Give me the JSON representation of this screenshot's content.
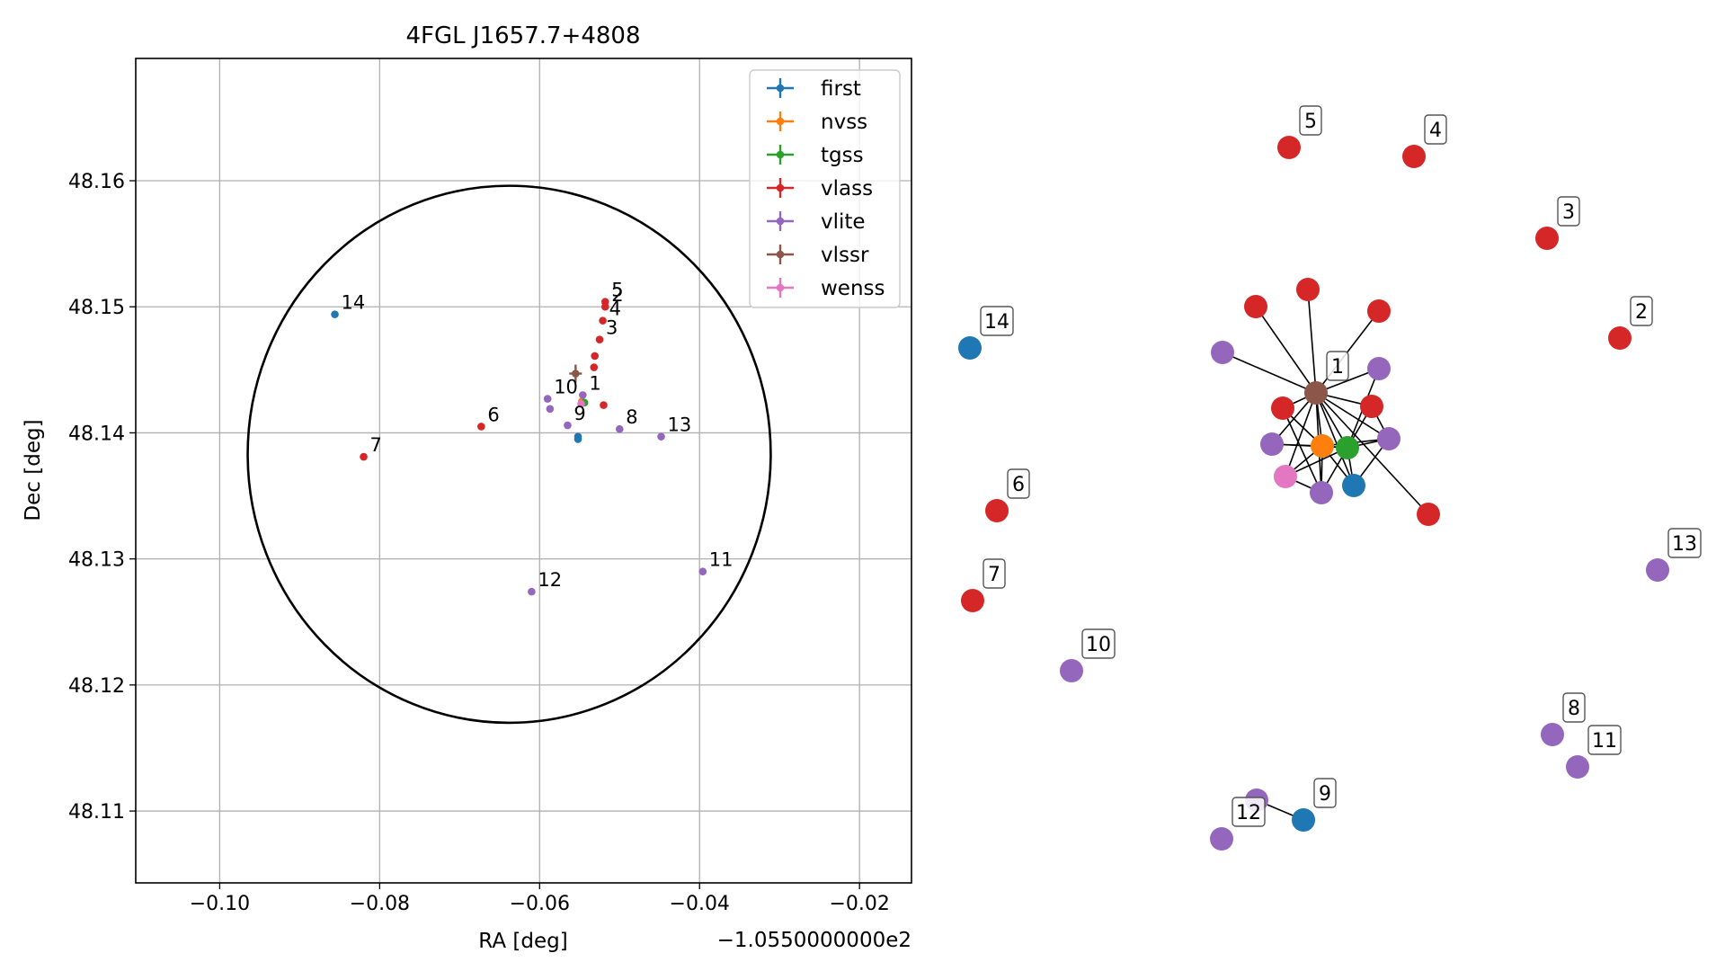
{
  "colors": {
    "first": "#1f77b4",
    "nvss": "#ff7f0e",
    "tgss": "#2ca02c",
    "vlass": "#d62728",
    "vlite": "#9467bd",
    "vlssr": "#8c564b",
    "wenss": "#e377c2"
  },
  "chart_data": [
    {
      "type": "scatter",
      "title": "4FGL J1657.7+4808",
      "xlabel": "RA [deg]",
      "ylabel": "Dec [deg]",
      "x_offset_label": "−1.0550000000e2",
      "xlim": [
        -0.1105,
        -0.0135
      ],
      "ylim": [
        48.1043,
        48.1697
      ],
      "xticks": [
        -0.1,
        -0.08,
        -0.06,
        -0.04,
        -0.02
      ],
      "xtick_labels": [
        "−0.10",
        "−0.08",
        "−0.06",
        "−0.04",
        "−0.02"
      ],
      "yticks": [
        48.11,
        48.12,
        48.13,
        48.14,
        48.15,
        48.16
      ],
      "ytick_labels": [
        "48.11",
        "48.12",
        "48.13",
        "48.14",
        "48.15",
        "48.16"
      ],
      "grid": true,
      "legend_placement": "top-right",
      "legend": [
        "first",
        "nvss",
        "tgss",
        "vlass",
        "vlite",
        "vlssr",
        "wenss"
      ],
      "circle": {
        "center": [
          -0.0638,
          48.1383
        ],
        "radius_ra": 0.0327,
        "radius_dec": 0.0213
      },
      "points": [
        {
          "survey": "first",
          "x": -0.0552,
          "y": 48.1395
        },
        {
          "survey": "first",
          "x": -0.0552,
          "y": 48.1397
        },
        {
          "survey": "first",
          "x": -0.0856,
          "y": 48.1494,
          "label": "14"
        },
        {
          "survey": "nvss",
          "x": -0.0547,
          "y": 48.1425
        },
        {
          "survey": "tgss",
          "x": -0.0544,
          "y": 48.1424
        },
        {
          "survey": "vlass",
          "x": -0.0518,
          "y": 48.1504,
          "label": "5"
        },
        {
          "survey": "vlass",
          "x": -0.0518,
          "y": 48.15,
          "label": "2"
        },
        {
          "survey": "vlass",
          "x": -0.0521,
          "y": 48.1489,
          "label": "4"
        },
        {
          "survey": "vlass",
          "x": -0.0525,
          "y": 48.1474,
          "label": "3"
        },
        {
          "survey": "vlass",
          "x": -0.0531,
          "y": 48.1461
        },
        {
          "survey": "vlass",
          "x": -0.0532,
          "y": 48.1452
        },
        {
          "survey": "vlass",
          "x": -0.052,
          "y": 48.1422
        },
        {
          "survey": "vlass",
          "x": -0.0673,
          "y": 48.1405,
          "label": "6"
        },
        {
          "survey": "vlass",
          "x": -0.082,
          "y": 48.1381,
          "label": "7"
        },
        {
          "survey": "vlite",
          "x": -0.0546,
          "y": 48.143,
          "label": "1"
        },
        {
          "survey": "vlite",
          "x": -0.059,
          "y": 48.1427,
          "label": "10"
        },
        {
          "survey": "vlite",
          "x": -0.0587,
          "y": 48.1419
        },
        {
          "survey": "vlite",
          "x": -0.0565,
          "y": 48.1406,
          "label": "9"
        },
        {
          "survey": "vlite",
          "x": -0.05,
          "y": 48.1403,
          "label": "8"
        },
        {
          "survey": "vlite",
          "x": -0.0448,
          "y": 48.1397,
          "label": "13"
        },
        {
          "survey": "vlite",
          "x": -0.0396,
          "y": 48.129,
          "label": "11"
        },
        {
          "survey": "vlite",
          "x": -0.061,
          "y": 48.1274,
          "label": "12"
        },
        {
          "survey": "vlssr",
          "x": -0.0555,
          "y": 48.1447
        },
        {
          "survey": "wenss",
          "x": -0.0548,
          "y": 48.1423
        }
      ]
    },
    {
      "type": "network",
      "nodes": [
        {
          "id": "n1",
          "survey": "vlssr",
          "label": "1"
        },
        {
          "id": "n2",
          "survey": "vlass",
          "label": "2"
        },
        {
          "id": "n3",
          "survey": "vlass",
          "label": "3"
        },
        {
          "id": "n4",
          "survey": "vlass",
          "label": "4"
        },
        {
          "id": "n5",
          "survey": "vlass",
          "label": "5"
        },
        {
          "id": "n6",
          "survey": "vlass",
          "label": "6"
        },
        {
          "id": "n7",
          "survey": "vlass",
          "label": "7"
        },
        {
          "id": "n8",
          "survey": "vlite",
          "label": "8"
        },
        {
          "id": "n9",
          "survey": "first",
          "label": "9"
        },
        {
          "id": "n10",
          "survey": "vlite",
          "label": "10"
        },
        {
          "id": "n11",
          "survey": "vlite",
          "label": "11"
        },
        {
          "id": "n12",
          "survey": "vlite",
          "label": "12"
        },
        {
          "id": "n13",
          "survey": "vlite",
          "label": "13"
        },
        {
          "id": "n14",
          "survey": "first",
          "label": "14"
        },
        {
          "id": "c1",
          "survey": "vlass"
        },
        {
          "id": "c2",
          "survey": "vlass"
        },
        {
          "id": "c3",
          "survey": "vlass"
        },
        {
          "id": "c4",
          "survey": "vlass"
        },
        {
          "id": "c5",
          "survey": "vlass"
        },
        {
          "id": "c6",
          "survey": "vlass"
        },
        {
          "id": "c7",
          "survey": "vlite"
        },
        {
          "id": "c8",
          "survey": "vlite"
        },
        {
          "id": "c9",
          "survey": "vlite"
        },
        {
          "id": "c10",
          "survey": "vlite"
        },
        {
          "id": "c11",
          "survey": "vlite"
        },
        {
          "id": "c12",
          "survey": "nvss"
        },
        {
          "id": "c13",
          "survey": "tgss"
        },
        {
          "id": "c14",
          "survey": "first"
        },
        {
          "id": "c15",
          "survey": "wenss"
        },
        {
          "id": "p12",
          "survey": "vlite"
        }
      ],
      "edges": [
        [
          "n1",
          "c1"
        ],
        [
          "n1",
          "c2"
        ],
        [
          "n1",
          "c3"
        ],
        [
          "n1",
          "c4"
        ],
        [
          "n1",
          "c5"
        ],
        [
          "n1",
          "c6"
        ],
        [
          "n1",
          "c7"
        ],
        [
          "n1",
          "c8"
        ],
        [
          "n1",
          "c9"
        ],
        [
          "n1",
          "c10"
        ],
        [
          "n1",
          "c11"
        ],
        [
          "n1",
          "c12"
        ],
        [
          "n1",
          "c13"
        ],
        [
          "n1",
          "c14"
        ],
        [
          "n1",
          "c15"
        ],
        [
          "c12",
          "c13"
        ],
        [
          "c12",
          "c15"
        ],
        [
          "c12",
          "c14"
        ],
        [
          "c12",
          "c10"
        ],
        [
          "c12",
          "c11"
        ],
        [
          "c12",
          "c4"
        ],
        [
          "c12",
          "c9"
        ],
        [
          "c13",
          "c14"
        ],
        [
          "c13",
          "c11"
        ],
        [
          "c13",
          "c5"
        ],
        [
          "c13",
          "c9"
        ],
        [
          "c13",
          "c8"
        ],
        [
          "c13",
          "c15"
        ],
        [
          "c13",
          "c10"
        ],
        [
          "c15",
          "c10"
        ],
        [
          "c4",
          "c10"
        ],
        [
          "c5",
          "c11"
        ],
        [
          "c14",
          "c11"
        ],
        [
          "p12",
          "n9"
        ]
      ]
    }
  ]
}
